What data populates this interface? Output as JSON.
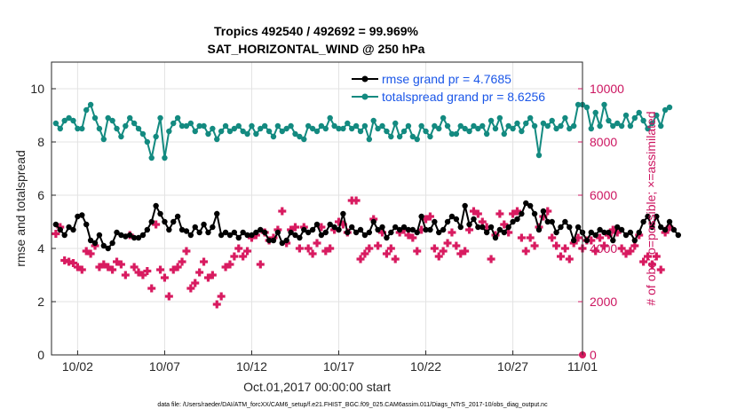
{
  "colors": {
    "rmse": "#000000",
    "totalspread": "#138a80",
    "obs": "#d81b60",
    "legend_text": "#1a56e8",
    "right_axis": "#cc1560"
  },
  "chart_data": {
    "type": "line",
    "title_line1": "Tropics 492540 / 492692 = 99.969%",
    "title_line2": "SAT_HORIZONTAL_WIND @ 250 hPa",
    "xlabel": "Oct.01,2017 00:00:00 start",
    "ylabel_left": "rmse and totalspread",
    "ylabel_right": "# of obs: o=possible; ×=assimilated",
    "footer": "data file: /Users/raeder/DAI/ATM_forcXX/CAM6_setup/f.e21.FHIST_BGC.f09_025.CAM6assim.011/Diags_NTrS_2017-10/obs_diag_output.nc",
    "xlim": [
      0.5,
      31.0
    ],
    "ylim_left": [
      0,
      11
    ],
    "ylim_right": [
      0,
      11000
    ],
    "grid": true,
    "legend_position": "top-right",
    "x_ticks": [
      {
        "value": 2,
        "label": "10/02"
      },
      {
        "value": 7,
        "label": "10/07"
      },
      {
        "value": 12,
        "label": "10/12"
      },
      {
        "value": 17,
        "label": "10/17"
      },
      {
        "value": 22,
        "label": "10/22"
      },
      {
        "value": 27,
        "label": "10/27"
      },
      {
        "value": 31,
        "label": "11/01"
      }
    ],
    "y_ticks_left": [
      0,
      2,
      4,
      6,
      8,
      10
    ],
    "y_ticks_right": [
      0,
      2000,
      4000,
      6000,
      8000,
      10000
    ],
    "x_start": 0.75,
    "x_step": 0.25,
    "series": [
      {
        "name": "rmse",
        "legend": "rmse grand pr = 4.7685",
        "axis": "left",
        "values": [
          4.9,
          4.7,
          4.5,
          4.8,
          4.7,
          5.2,
          5.25,
          4.9,
          4.3,
          4.2,
          4.5,
          4.1,
          4.0,
          4.2,
          4.6,
          4.5,
          4.45,
          4.5,
          4.4,
          4.4,
          4.5,
          4.7,
          5.0,
          5.6,
          5.3,
          5.0,
          4.7,
          5.0,
          5.2,
          4.7,
          4.65,
          4.5,
          4.8,
          4.6,
          4.9,
          4.6,
          4.8,
          5.3,
          4.5,
          4.6,
          4.5,
          4.6,
          4.4,
          4.6,
          4.5,
          4.5,
          4.6,
          4.7,
          4.6,
          4.3,
          4.3,
          4.6,
          4.2,
          4.3,
          4.6,
          4.5,
          4.4,
          4.7,
          4.6,
          4.7,
          4.9,
          4.5,
          4.6,
          4.9,
          4.8,
          4.7,
          5.3,
          4.6,
          4.8,
          4.6,
          4.7,
          4.5,
          4.6,
          5.0,
          4.7,
          4.8,
          4.4,
          4.6,
          4.8,
          4.7,
          4.8,
          4.7,
          4.7,
          4.6,
          5.2,
          4.7,
          4.7,
          5.0,
          4.6,
          4.7,
          5.0,
          5.2,
          5.1,
          4.8,
          5.6,
          4.9,
          5.1,
          4.8,
          4.8,
          4.6,
          4.8,
          4.4,
          4.7,
          4.6,
          4.8,
          5.0,
          5.1,
          5.3,
          5.7,
          5.6,
          5.3,
          4.7,
          5.4,
          5.0,
          5.0,
          4.6,
          4.8,
          5.0,
          4.8,
          4.3,
          4.8,
          4.6,
          4.3,
          4.6,
          4.5,
          4.7,
          4.6,
          4.6,
          4.3,
          4.8,
          4.7,
          4.5,
          4.6,
          4.3,
          4.6,
          5.0,
          5.2,
          4.8,
          5.2,
          4.8,
          4.7,
          5.0,
          4.7,
          4.5
        ],
        "marker": "dot"
      },
      {
        "name": "totalspread",
        "legend": "totalspread grand pr = 8.6256",
        "axis": "left",
        "values": [
          8.7,
          8.5,
          8.8,
          8.9,
          8.8,
          8.5,
          8.5,
          9.2,
          9.4,
          8.9,
          8.5,
          8.1,
          8.9,
          8.8,
          8.5,
          8.2,
          8.6,
          8.9,
          8.7,
          8.5,
          8.3,
          8.0,
          7.4,
          8.2,
          8.9,
          7.4,
          8.4,
          8.7,
          8.9,
          8.6,
          8.6,
          8.7,
          8.4,
          8.6,
          8.6,
          8.3,
          8.5,
          8.1,
          8.4,
          8.6,
          8.4,
          8.5,
          8.6,
          8.4,
          8.3,
          8.6,
          8.3,
          8.5,
          8.6,
          8.4,
          8.2,
          8.6,
          8.4,
          8.5,
          8.6,
          8.3,
          8.2,
          8.1,
          8.6,
          8.5,
          8.4,
          8.6,
          8.5,
          8.9,
          8.6,
          8.5,
          8.5,
          8.7,
          8.5,
          8.6,
          8.4,
          8.6,
          8.1,
          8.8,
          8.5,
          8.6,
          8.4,
          8.2,
          8.7,
          8.2,
          8.4,
          8.6,
          8.2,
          8.1,
          8.6,
          8.4,
          8.2,
          8.6,
          8.5,
          8.9,
          8.6,
          8.3,
          8.3,
          8.6,
          8.5,
          8.4,
          8.6,
          8.5,
          8.6,
          8.3,
          8.8,
          8.5,
          8.9,
          8.3,
          8.6,
          8.5,
          8.7,
          8.4,
          8.7,
          8.9,
          8.6,
          7.5,
          8.7,
          8.6,
          8.8,
          8.5,
          8.6,
          8.9,
          8.5,
          8.6,
          9.4,
          9.4,
          9.3,
          8.5,
          9.1,
          8.6,
          9.4,
          8.8,
          8.6,
          8.7,
          8.6,
          9.0,
          8.6,
          8.9,
          9.1,
          8.8,
          8.5,
          8.7,
          9.0,
          8.6,
          9.2,
          9.3
        ],
        "marker": "dot"
      },
      {
        "name": "obs_possible",
        "axis": "right",
        "marker": "plus",
        "values": [
          4550,
          4800,
          3550,
          3500,
          3450,
          3300,
          3200,
          3900,
          3800,
          4100,
          3300,
          3400,
          3300,
          3200,
          3500,
          3400,
          3000,
          4500,
          3300,
          3100,
          3000,
          3150,
          2500,
          4900,
          3200,
          2900,
          2200,
          3200,
          3300,
          3500,
          3900,
          2500,
          2700,
          3100,
          3500,
          2900,
          3000,
          1900,
          2200,
          3300,
          3400,
          3700,
          4000,
          3700,
          3900,
          4400,
          4500,
          3400,
          4600,
          4300,
          4400,
          4700,
          5400,
          4200,
          4700,
          4800,
          4000,
          4800,
          4000,
          3800,
          4200,
          4800,
          3900,
          4000,
          4700,
          5000,
          4900,
          4600,
          5800,
          5800,
          3600,
          3800,
          4000,
          5100,
          4100,
          4600,
          3800,
          4000,
          3600,
          4600,
          4700,
          4500,
          4400,
          3900,
          4700,
          5100,
          5200,
          4000,
          3700,
          3900,
          4200,
          4600,
          4100,
          3800,
          3900,
          4700,
          5400,
          5300,
          5000,
          4800,
          3600,
          4500,
          5300,
          4900,
          4600,
          5300,
          5400,
          4400,
          3900,
          4400,
          4100,
          4800,
          5200,
          5400,
          4400,
          4100,
          3700,
          4000,
          3600,
          4200,
          4400,
          4000,
          4300,
          4300,
          3900,
          4400,
          4100,
          4500,
          4700,
          4600,
          4000,
          3800,
          3900,
          4100,
          4500,
          3500,
          3700,
          3400,
          3700,
          3200,
          4600,
          4800
        ],
        "note": "last value plotted at 11/01 is 0"
      }
    ],
    "obs_final_zero": {
      "x": 31.0,
      "value": 0
    }
  }
}
